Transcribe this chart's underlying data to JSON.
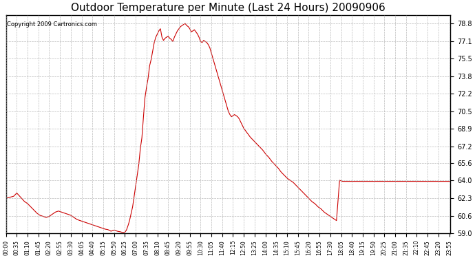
{
  "title": "Outdoor Temperature per Minute (Last 24 Hours) 20090906",
  "copyright": "Copyright 2009 Cartronics.com",
  "line_color": "#cc0000",
  "background_color": "#ffffff",
  "grid_color": "#aaaaaa",
  "y_min": 59.0,
  "y_max": 79.6,
  "y_ticks": [
    59.0,
    60.6,
    62.3,
    64.0,
    65.6,
    67.2,
    68.9,
    70.5,
    72.2,
    73.8,
    75.5,
    77.1,
    78.8
  ],
  "x_tick_labels": [
    "00:00",
    "00:35",
    "01:10",
    "01:45",
    "02:20",
    "02:55",
    "03:30",
    "04:05",
    "04:40",
    "05:15",
    "05:50",
    "06:25",
    "07:00",
    "07:35",
    "08:10",
    "08:45",
    "09:20",
    "09:55",
    "10:30",
    "11:05",
    "11:40",
    "12:15",
    "12:50",
    "13:25",
    "14:00",
    "14:35",
    "15:10",
    "15:45",
    "16:20",
    "16:55",
    "17:30",
    "18:05",
    "18:40",
    "19:15",
    "19:50",
    "20:25",
    "21:00",
    "21:35",
    "22:10",
    "22:45",
    "23:20",
    "23:55"
  ],
  "key_points": {
    "0": 62.3,
    "25": 62.5,
    "35": 62.8,
    "60": 62.0,
    "70": 61.8,
    "80": 61.5,
    "90": 61.2,
    "100": 60.9,
    "110": 60.7,
    "120": 60.6,
    "130": 60.5,
    "140": 60.6,
    "150": 60.8,
    "160": 61.0,
    "170": 61.1,
    "180": 61.0,
    "190": 60.9,
    "200": 60.8,
    "210": 60.7,
    "220": 60.5,
    "230": 60.3,
    "240": 60.2,
    "250": 60.1,
    "260": 60.0,
    "270": 59.9,
    "280": 59.8,
    "290": 59.7,
    "300": 59.6,
    "310": 59.5,
    "320": 59.4,
    "330": 59.35,
    "340": 59.2,
    "350": 59.3,
    "360": 59.2,
    "370": 59.15,
    "375": 59.1,
    "380": 59.1,
    "385": 59.1,
    "390": 59.3,
    "395": 59.7,
    "400": 60.2,
    "410": 61.5,
    "420": 63.5,
    "430": 65.5,
    "435": 67.0,
    "440": 68.0,
    "445": 70.0,
    "450": 71.8,
    "455": 72.8,
    "460": 73.6,
    "465": 74.8,
    "470": 75.4,
    "475": 76.2,
    "480": 77.0,
    "485": 77.5,
    "490": 77.8,
    "495": 78.1,
    "500": 78.3,
    "505": 77.5,
    "510": 77.2,
    "515": 77.4,
    "520": 77.5,
    "525": 77.6,
    "530": 77.4,
    "535": 77.3,
    "540": 77.1,
    "545": 77.5,
    "550": 77.8,
    "555": 78.1,
    "560": 78.3,
    "565": 78.5,
    "570": 78.6,
    "575": 78.7,
    "580": 78.8,
    "585": 78.6,
    "590": 78.5,
    "595": 78.3,
    "600": 78.0,
    "605": 78.1,
    "610": 78.2,
    "615": 78.0,
    "620": 77.8,
    "625": 77.5,
    "630": 77.1,
    "635": 77.0,
    "640": 77.2,
    "645": 77.1,
    "650": 77.0,
    "655": 76.8,
    "660": 76.5,
    "665": 76.0,
    "670": 75.5,
    "675": 75.0,
    "680": 74.5,
    "685": 74.0,
    "690": 73.5,
    "695": 73.0,
    "700": 72.5,
    "705": 72.0,
    "710": 71.5,
    "715": 71.0,
    "720": 70.5,
    "725": 70.2,
    "730": 70.0,
    "735": 70.1,
    "740": 70.2,
    "745": 70.1,
    "750": 70.0,
    "755": 69.8,
    "760": 69.5,
    "765": 69.2,
    "770": 68.9,
    "775": 68.7,
    "780": 68.5,
    "785": 68.3,
    "790": 68.1,
    "800": 67.8,
    "810": 67.5,
    "820": 67.2,
    "830": 66.9,
    "840": 66.5,
    "850": 66.2,
    "860": 65.8,
    "870": 65.5,
    "880": 65.2,
    "890": 64.8,
    "900": 64.5,
    "910": 64.2,
    "920": 64.0,
    "930": 63.8,
    "940": 63.5,
    "950": 63.2,
    "960": 62.9,
    "970": 62.6,
    "980": 62.3,
    "990": 62.0,
    "1000": 61.8,
    "1010": 61.5,
    "1020": 61.3,
    "1030": 61.0,
    "1040": 60.8,
    "1050": 60.6,
    "1060": 60.4,
    "1070": 60.2,
    "1080": 64.0,
    "1090": 63.9,
    "1100": 63.9,
    "1110": 63.9,
    "1120": 63.9,
    "1130": 63.9,
    "1140": 63.9,
    "1150": 63.9,
    "1160": 63.9,
    "1170": 63.9,
    "1180": 63.9,
    "1190": 63.9,
    "1200": 63.9,
    "1210": 63.9,
    "1220": 63.9,
    "1230": 63.9,
    "1240": 63.9,
    "1250": 63.9,
    "1260": 63.9,
    "1270": 63.9,
    "1280": 63.9,
    "1290": 63.9,
    "1300": 63.9,
    "1310": 63.9,
    "1320": 63.9,
    "1330": 63.9,
    "1340": 63.9,
    "1350": 63.9,
    "1360": 63.9,
    "1370": 63.9,
    "1380": 63.9,
    "1390": 63.9,
    "1400": 63.9,
    "1410": 63.9,
    "1420": 63.9,
    "1430": 63.9,
    "1439": 63.9
  }
}
